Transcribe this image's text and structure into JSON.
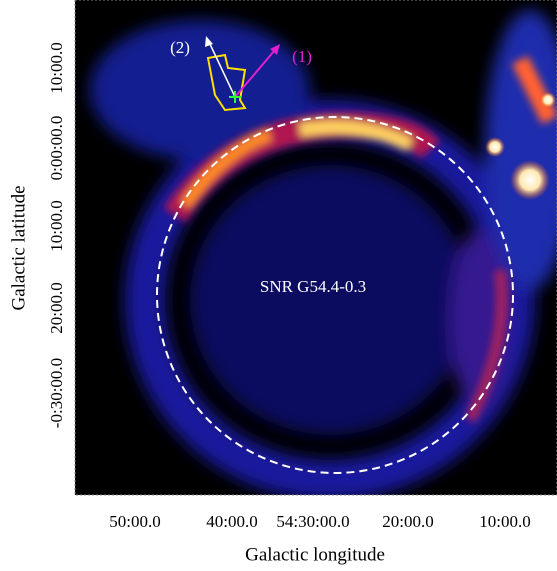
{
  "figure": {
    "x_axis": {
      "label": "Galactic longitude",
      "ticks": [
        "50:00.0",
        "40:00.0",
        "54:30:00.0",
        "20:00.0",
        "10:00.0"
      ]
    },
    "y_axis": {
      "label": "Galactic latitude",
      "ticks": [
        "10:00.0",
        "0:00:00.0",
        "10:00.0",
        "20:00.0",
        "-0:30:00.0"
      ]
    },
    "annotations": {
      "arrow_2": "(2)",
      "arrow_1": "(1)",
      "remnant": "SNR G54.4-0.3"
    }
  }
}
